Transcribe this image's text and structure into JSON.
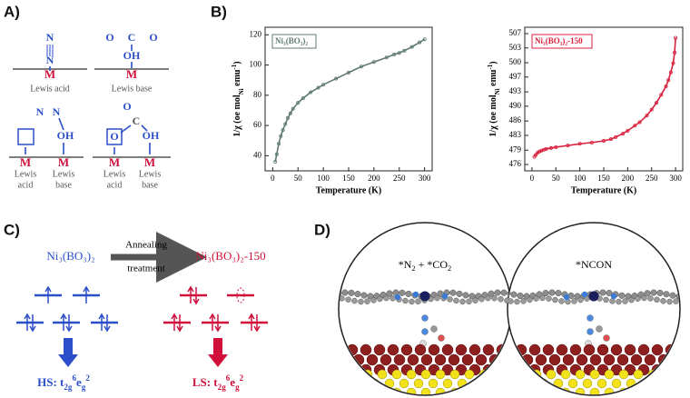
{
  "panel_labels": [
    "A)",
    "B)",
    "C)",
    "D)"
  ],
  "panel_a": {
    "texts": [
      "N",
      "N",
      "M",
      "Lewis acid",
      "O",
      "C",
      "O",
      "OH",
      "M",
      "Lewis base",
      "N",
      "N",
      "OH",
      "M",
      "M",
      "Lewis",
      "acid",
      "Lewis",
      "base",
      "O",
      "C",
      "OH",
      "O",
      "M",
      "M",
      "Lewis",
      "acid",
      "Lewis",
      "base"
    ]
  },
  "chart_data": [
    {
      "type": "line",
      "x_label": "Temperature (K)",
      "y_label": [
        {
          "t": "1/χ (oe mol"
        },
        {
          "sub": "Ni"
        },
        {
          "t": " emu"
        },
        {
          "sup": "-1"
        },
        {
          "t": ")"
        }
      ],
      "x": [
        5,
        8,
        12,
        16,
        20,
        25,
        30,
        35,
        40,
        50,
        60,
        75,
        90,
        100,
        125,
        150,
        175,
        200,
        225,
        240,
        250,
        260,
        275,
        290,
        300
      ],
      "series": [
        {
          "name": "Ni₃(BO₃)₂",
          "color": "#5f7a72",
          "values": [
            36,
            41,
            48,
            53,
            57,
            61,
            65,
            68,
            71,
            75,
            78,
            82,
            85,
            87,
            91,
            95,
            99,
            102,
            105,
            107,
            108,
            109.5,
            112,
            115,
            117
          ]
        }
      ],
      "xlim": [
        -15,
        315
      ],
      "ylim": [
        30,
        125
      ],
      "xticks": [
        0,
        50,
        100,
        150,
        200,
        250,
        300
      ],
      "yticks": [
        40,
        60,
        80,
        100,
        120
      ]
    },
    {
      "type": "line",
      "x_label": "Temperature (K)",
      "y_label": [
        {
          "t": "1/χ (oe mol"
        },
        {
          "sub": "Ni"
        },
        {
          "t": " emu"
        },
        {
          "sup": "-1"
        },
        {
          "t": ")"
        }
      ],
      "x": [
        5,
        8,
        12,
        16,
        20,
        25,
        30,
        40,
        50,
        75,
        100,
        125,
        150,
        165,
        175,
        190,
        200,
        215,
        225,
        240,
        250,
        260,
        270,
        280,
        285,
        290,
        295,
        298,
        300
      ],
      "series": [
        {
          "name": "Ni₃(BO₃)₂-150",
          "color": "#d81f3c",
          "values": [
            477.8,
            478.3,
            478.8,
            479.1,
            479.3,
            479.5,
            479.7,
            479.9,
            480.1,
            480.5,
            480.9,
            481.2,
            481.6,
            482,
            482.5,
            483.3,
            484,
            485.2,
            486,
            487.6,
            489,
            490.6,
            492.5,
            494.5,
            496,
            497.8,
            500,
            502.5,
            506
          ]
        }
      ],
      "xlim": [
        -15,
        315
      ],
      "ylim": [
        474.5,
        508.5
      ],
      "xticks": [
        0,
        50,
        100,
        150,
        200,
        250,
        300
      ],
      "yticks": [
        {
          "value": 476,
          "label": "476"
        },
        {
          "value": 479.4,
          "label": "479"
        },
        {
          "value": 482.9,
          "label": "483"
        },
        {
          "value": 486.3,
          "label": "486"
        },
        {
          "value": 489.8,
          "label": "490"
        },
        {
          "value": 493.2,
          "label": "493"
        },
        {
          "value": 496.7,
          "label": "497"
        },
        {
          "value": 500.1,
          "label": "500"
        },
        {
          "value": 503.6,
          "label": "503"
        },
        {
          "value": 507,
          "label": "507"
        }
      ]
    }
  ],
  "panel_c": {
    "left_formula": "Ni₃(BO₃)₂",
    "arrow_top": "Annealing",
    "arrow_bottom": "treatment",
    "right_formula": "Ni₃(BO₃)₂-150",
    "hs": [
      {
        "t": "HS: t"
      },
      {
        "sub": "2g"
      },
      {
        "sup": "6"
      },
      {
        "t": "e"
      },
      {
        "sub": "g"
      },
      {
        "sup": "2"
      }
    ],
    "ls": [
      {
        "t": "LS: t"
      },
      {
        "sub": "2g"
      },
      {
        "sup": "6"
      },
      {
        "t": "e"
      },
      {
        "sub": "g"
      },
      {
        "sup": "2"
      }
    ]
  },
  "panel_d": {
    "left": [
      {
        "t": "*N"
      },
      {
        "sub": "2"
      },
      {
        "t": " + *CO"
      },
      {
        "sub": "2"
      }
    ],
    "right": [
      {
        "t": "*NCON"
      }
    ]
  }
}
